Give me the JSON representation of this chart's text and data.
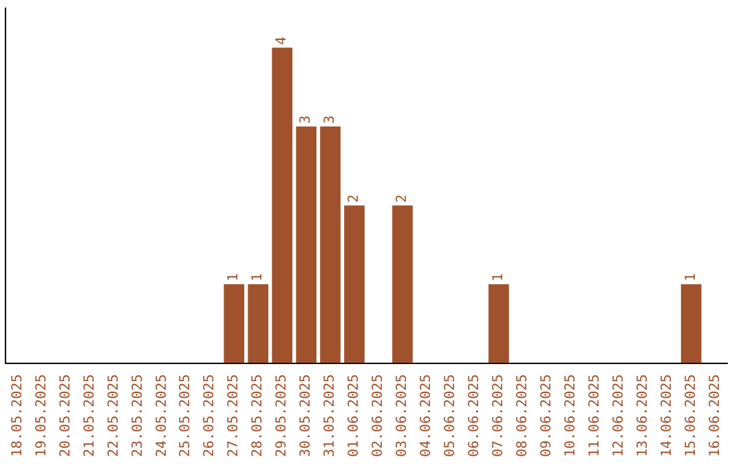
{
  "chart_data": {
    "type": "bar",
    "categories": [
      "18.05.2025",
      "19.05.2025",
      "20.05.2025",
      "21.05.2025",
      "22.05.2025",
      "23.05.2025",
      "24.05.2025",
      "25.05.2025",
      "26.05.2025",
      "27.05.2025",
      "28.05.2025",
      "29.05.2025",
      "30.05.2025",
      "31.05.2025",
      "01.06.2025",
      "02.06.2025",
      "03.06.2025",
      "04.06.2025",
      "05.06.2025",
      "06.06.2025",
      "07.06.2025",
      "08.06.2025",
      "09.06.2025",
      "10.06.2025",
      "11.06.2025",
      "12.06.2025",
      "13.06.2025",
      "14.06.2025",
      "15.06.2025",
      "16.06.2025"
    ],
    "values": [
      0,
      0,
      0,
      0,
      0,
      0,
      0,
      0,
      0,
      1,
      1,
      4,
      3,
      3,
      2,
      0,
      2,
      0,
      0,
      0,
      1,
      0,
      0,
      0,
      0,
      0,
      0,
      0,
      1,
      0
    ],
    "value_labels": [
      null,
      null,
      null,
      null,
      null,
      null,
      null,
      null,
      null,
      "1",
      "1",
      "4",
      "3",
      "3",
      "2",
      null,
      "2",
      null,
      null,
      null,
      "1",
      null,
      null,
      null,
      null,
      null,
      null,
      null,
      "1",
      null
    ],
    "color": "#a0522d",
    "tick_labels": "x",
    "grid": false,
    "legend": false
  }
}
